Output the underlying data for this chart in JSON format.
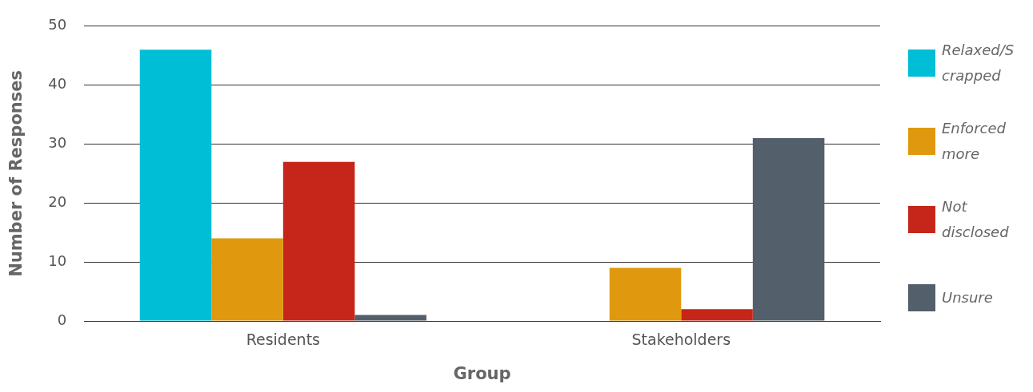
{
  "chart_data": {
    "type": "bar",
    "xlabel": "Group",
    "ylabel": "Number of Responses",
    "categories": [
      "Residents",
      "Stakeholders"
    ],
    "series": [
      {
        "name": "Relaxed/Scrapped",
        "color": "#00bed6",
        "values": [
          46,
          0
        ]
      },
      {
        "name": "Enforced more",
        "color": "#e0990f",
        "values": [
          14,
          9
        ]
      },
      {
        "name": "Not disclosed",
        "color": "#c62619",
        "values": [
          27,
          2
        ]
      },
      {
        "name": "Unsure",
        "color": "#535f6b",
        "values": [
          1,
          31
        ]
      }
    ],
    "ylim": [
      0,
      50
    ],
    "yticks": [
      0,
      10,
      20,
      30,
      40,
      50
    ],
    "grid": "y",
    "legend": "right"
  }
}
